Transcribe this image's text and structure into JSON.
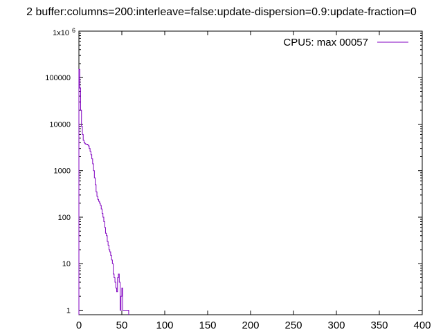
{
  "chart_data": {
    "type": "line",
    "title": "2 buffer:columns=200:interleave=false:update-dispersion=0.9:update-fraction=0",
    "xlabel": "",
    "ylabel": "",
    "xlim": [
      0,
      400
    ],
    "ylim": [
      0.8,
      1000000
    ],
    "yscale": "log",
    "x_ticks": [
      0,
      50,
      100,
      150,
      200,
      250,
      300,
      350,
      400
    ],
    "x_tick_labels": [
      "0",
      "50",
      "100",
      "150",
      "200",
      "250",
      "300",
      "350",
      "400"
    ],
    "y_ticks": [
      1,
      10,
      100,
      1000,
      10000,
      100000
    ],
    "y_tick_labels": [
      "1",
      "10",
      "100",
      "1000",
      "10000",
      "100000"
    ],
    "y_top_label_base": "1x10",
    "y_top_label_exp": "6",
    "grid": false,
    "legend_position": "top-right",
    "series": [
      {
        "name": "CPU5: max 00057",
        "color": "#8000c0",
        "step": true,
        "x": [
          0,
          1,
          2,
          3,
          4,
          5,
          6,
          7,
          8,
          9,
          10,
          11,
          12,
          13,
          14,
          15,
          16,
          17,
          18,
          19,
          20,
          21,
          22,
          23,
          24,
          25,
          26,
          27,
          28,
          29,
          30,
          31,
          32,
          33,
          34,
          35,
          36,
          37,
          38,
          39,
          40,
          41,
          42,
          43,
          44,
          45,
          46,
          47,
          48,
          49,
          50,
          51,
          52,
          53,
          54,
          55,
          56,
          57
        ],
        "y": [
          150000,
          60000,
          20000,
          9000,
          6000,
          4500,
          4000,
          3800,
          3700,
          3700,
          3600,
          3400,
          3000,
          2600,
          2200,
          1800,
          1400,
          1000,
          700,
          500,
          350,
          280,
          240,
          220,
          200,
          180,
          150,
          120,
          100,
          80,
          60,
          45,
          40,
          30,
          25,
          20,
          18,
          15,
          12,
          10,
          6,
          5,
          4,
          3,
          2.5,
          5,
          6,
          4,
          1,
          2,
          3,
          1,
          1,
          1,
          1,
          1,
          1,
          1
        ]
      }
    ]
  }
}
